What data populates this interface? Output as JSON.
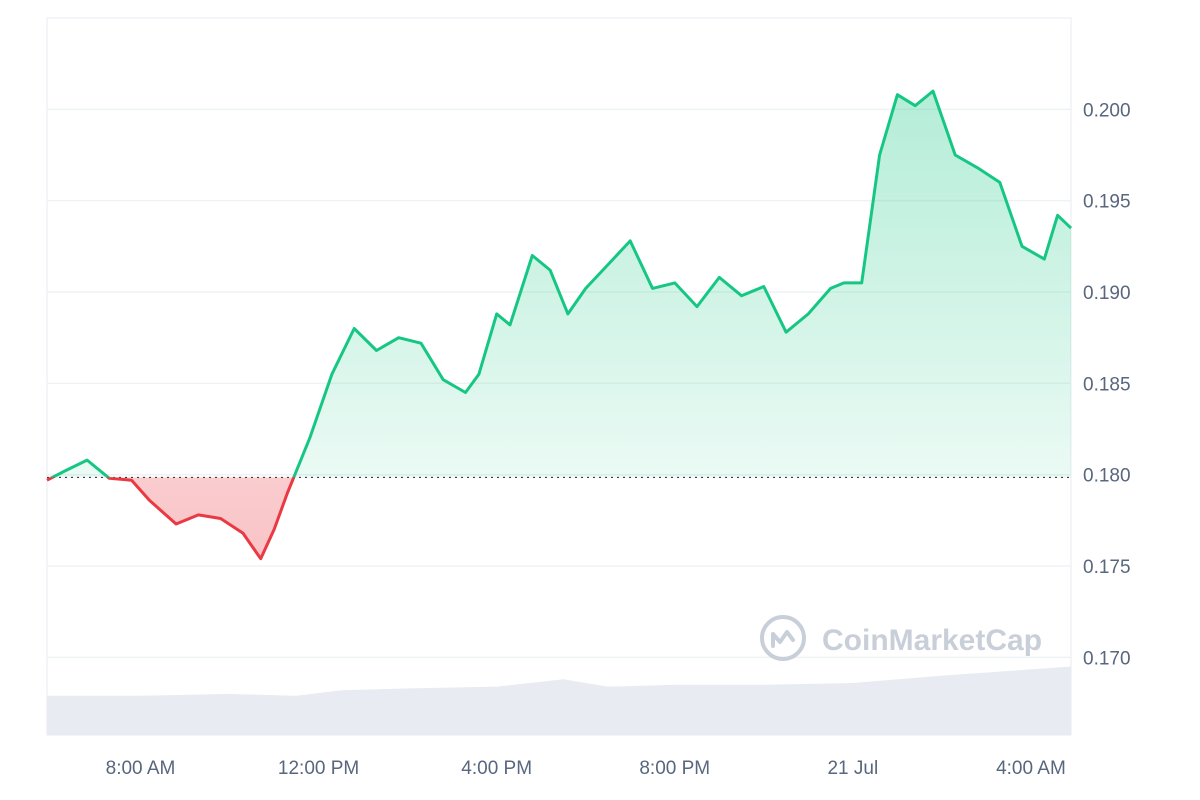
{
  "chart_data": {
    "type": "area",
    "x_tick_labels": [
      "8:00 AM",
      "12:00 PM",
      "4:00 PM",
      "8:00 PM",
      "21 Jul",
      "4:00 AM"
    ],
    "y_tick_labels": [
      "0.200",
      "0.195",
      "0.190",
      "0.185",
      "0.180",
      "0.175",
      "0.170"
    ],
    "y_ticks": [
      0.2,
      0.195,
      0.19,
      0.185,
      0.18,
      0.175,
      0.17
    ],
    "ylim": [
      0.16575,
      0.205
    ],
    "baseline": 0.17985,
    "grid": true,
    "colors": {
      "up": "#16c784",
      "down": "#ea3943",
      "grid": "#eff2f5",
      "volume": "#e8ecf2",
      "axis_text": "#58667e"
    },
    "x_range_hours": [
      5.9,
      28.9
    ],
    "x_tick_hours": [
      8,
      12,
      16,
      20,
      24,
      28
    ],
    "series": [
      {
        "x": [
          5.9,
          6.3,
          6.8,
          7.3,
          7.8,
          8.2,
          8.8,
          9.3,
          9.8,
          10.3,
          10.7,
          11.0,
          11.3,
          11.8,
          12.3,
          12.8,
          13.3,
          13.8,
          14.3,
          14.8,
          15.3,
          15.6,
          16.0,
          16.3,
          16.8,
          17.2,
          17.6,
          18.0,
          18.5,
          19.0,
          19.5,
          20.0,
          20.5,
          21.0,
          21.5,
          22.0,
          22.5,
          23.0,
          23.5,
          23.8,
          24.2,
          24.6,
          25.0,
          25.4,
          25.8,
          26.3,
          26.8,
          27.3,
          27.8,
          28.3,
          28.6,
          28.9
        ],
        "y": [
          0.1797,
          0.1802,
          0.1808,
          0.1798,
          0.1797,
          0.1786,
          0.1773,
          0.1778,
          0.1776,
          0.1768,
          0.1754,
          0.177,
          0.179,
          0.182,
          0.1855,
          0.188,
          0.1868,
          0.1875,
          0.1872,
          0.1852,
          0.1845,
          0.1855,
          0.1888,
          0.1882,
          0.192,
          0.1912,
          0.1888,
          0.1902,
          0.1915,
          0.1928,
          0.1902,
          0.1905,
          0.1892,
          0.1908,
          0.1898,
          0.1903,
          0.1878,
          0.1888,
          0.1902,
          0.1905,
          0.1905,
          0.1975,
          0.2008,
          0.2002,
          0.201,
          0.1975,
          0.1968,
          0.196,
          0.1925,
          0.1918,
          0.1942,
          0.1935
        ]
      }
    ],
    "volume": {
      "x": [
        5.9,
        8.0,
        10.0,
        11.5,
        12.5,
        14.0,
        16.0,
        17.5,
        18.5,
        20.0,
        22.0,
        24.0,
        26.0,
        28.9
      ],
      "y": [
        0.1679,
        0.1679,
        0.168,
        0.1679,
        0.1682,
        0.1683,
        0.1684,
        0.1688,
        0.1684,
        0.1685,
        0.1685,
        0.1686,
        0.169,
        0.1695
      ]
    }
  },
  "watermark": {
    "text": "CoinMarketCap",
    "icon": "coinmarketcap-logo-icon"
  }
}
